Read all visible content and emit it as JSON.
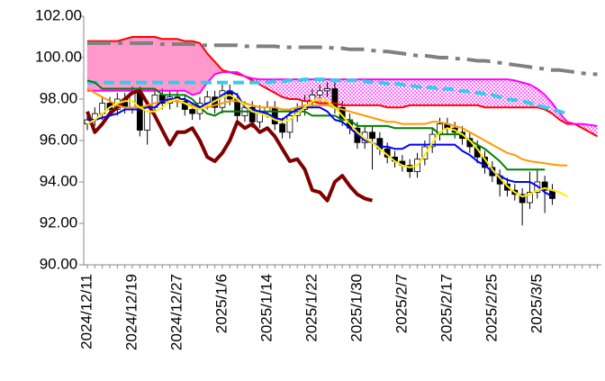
{
  "chart_data": {
    "type": "candlestick",
    "categories": [
      "2024/12/11",
      null,
      null,
      null,
      null,
      null,
      "2024/12/19",
      null,
      null,
      null,
      null,
      null,
      "2024/12/27",
      null,
      null,
      null,
      null,
      null,
      "2025/1/6",
      null,
      null,
      null,
      null,
      null,
      "2025/1/14",
      null,
      null,
      null,
      null,
      null,
      "2025/1/22",
      null,
      null,
      null,
      null,
      null,
      "2025/1/30",
      null,
      null,
      null,
      null,
      null,
      "2025/2/7",
      null,
      null,
      null,
      null,
      null,
      "2025/2/17",
      null,
      null,
      null,
      null,
      null,
      "2025/2/25",
      null,
      null,
      null,
      null,
      null,
      "2025/3/5",
      null,
      null,
      null,
      null,
      null,
      null,
      null,
      null
    ],
    "ylim": [
      90,
      102
    ],
    "yticks": [
      {
        "value": 90,
        "label": "90.00"
      },
      {
        "value": 92,
        "label": "92.00"
      },
      {
        "value": 94,
        "label": "94.00"
      },
      {
        "value": 96,
        "label": "96.00"
      },
      {
        "value": 98,
        "label": "98.00"
      },
      {
        "value": 100,
        "label": "100.00"
      },
      {
        "value": 102,
        "label": "102.00"
      }
    ],
    "grid": false,
    "cloud": {
      "upper_color": "#ff99cc",
      "lower_color": "#ff00ff",
      "spans": [
        0,
        1
      ]
    },
    "series": [
      {
        "color": "#ff0000",
        "line_style": "solid",
        "weight": "normal",
        "values": [
          100.8,
          100.8,
          100.8,
          100.8,
          100.8,
          100.9,
          101.0,
          101.0,
          101.0,
          101.0,
          100.9,
          100.9,
          100.9,
          100.8,
          100.8,
          100.7,
          100.2,
          99.8,
          99.4,
          99.3,
          99.2,
          99.1,
          98.9,
          98.7,
          98.5,
          98.3,
          98.1,
          98.0,
          98.0,
          97.9,
          97.9,
          97.8,
          97.8,
          97.8,
          97.7,
          97.7,
          97.7,
          97.7,
          97.7,
          97.7,
          97.6,
          97.6,
          97.6,
          97.7,
          97.7,
          97.7,
          97.7,
          97.7,
          97.7,
          97.7,
          97.7,
          97.7,
          97.7,
          97.6,
          97.6,
          97.6,
          97.6,
          97.6,
          97.6,
          97.6,
          97.6,
          97.5,
          97.3,
          97.0,
          96.8,
          96.8,
          96.6,
          96.4,
          96.2
        ]
      },
      {
        "color": "#ff00ff",
        "line_style": "solid",
        "weight": "normal",
        "values": [
          98.4,
          98.4,
          98.4,
          98.4,
          98.4,
          98.4,
          98.4,
          98.4,
          98.4,
          98.4,
          98.4,
          98.4,
          98.4,
          98.4,
          98.2,
          98.3,
          98.8,
          99.2,
          99.3,
          99.3,
          99.3,
          99.1,
          99.0,
          98.95,
          98.95,
          98.95,
          98.95,
          98.95,
          98.95,
          98.95,
          98.95,
          98.95,
          98.95,
          98.95,
          98.95,
          98.95,
          98.95,
          98.95,
          98.95,
          98.95,
          98.95,
          98.95,
          98.95,
          98.95,
          98.95,
          98.95,
          98.95,
          98.95,
          98.95,
          98.95,
          98.95,
          98.95,
          98.95,
          98.95,
          98.95,
          98.95,
          98.95,
          98.9,
          98.8,
          98.7,
          98.5,
          98.2,
          97.8,
          97.3,
          96.9,
          96.8,
          96.8,
          96.75,
          96.7
        ]
      },
      {
        "color": "#808080",
        "line_style": "dash-dot",
        "weight": "heavy",
        "values": [
          100.7,
          100.7,
          100.7,
          100.7,
          100.7,
          100.7,
          100.7,
          100.7,
          100.7,
          100.7,
          100.65,
          100.65,
          100.65,
          100.65,
          100.65,
          100.6,
          100.6,
          100.6,
          100.6,
          100.6,
          100.6,
          100.55,
          100.55,
          100.55,
          100.55,
          100.55,
          100.5,
          100.5,
          100.5,
          100.5,
          100.5,
          100.5,
          100.5,
          100.45,
          100.45,
          100.4,
          100.4,
          100.4,
          100.35,
          100.3,
          100.3,
          100.25,
          100.2,
          100.15,
          100.1,
          100.1,
          100.05,
          100.0,
          100.0,
          99.95,
          99.95,
          99.9,
          99.85,
          99.85,
          99.8,
          99.75,
          99.7,
          99.65,
          99.6,
          99.55,
          99.5,
          99.45,
          99.4,
          99.4,
          99.35,
          99.3,
          99.25,
          99.2,
          99.2
        ]
      },
      {
        "color": "#33ccee",
        "line_style": "dashed",
        "weight": "heavy",
        "values": [
          98.8,
          98.8,
          98.8,
          98.8,
          98.8,
          98.8,
          98.8,
          98.8,
          98.8,
          98.8,
          98.8,
          98.8,
          98.8,
          98.8,
          98.8,
          98.8,
          98.8,
          98.8,
          98.8,
          98.8,
          98.8,
          98.8,
          98.8,
          98.8,
          98.8,
          98.85,
          98.85,
          98.9,
          98.9,
          98.95,
          98.95,
          98.95,
          98.95,
          98.9,
          98.9,
          98.9,
          98.9,
          98.85,
          98.8,
          98.8,
          98.75,
          98.75,
          98.7,
          98.65,
          98.6,
          98.6,
          98.55,
          98.5,
          98.5,
          98.45,
          98.4,
          98.35,
          98.3,
          98.25,
          98.2,
          98.1,
          98.0,
          97.95,
          97.9,
          97.8,
          97.7,
          97.6,
          97.5,
          97.4,
          97.3,
          null,
          null,
          null,
          null
        ]
      },
      {
        "color": "#800000",
        "line_style": "solid",
        "weight": "heavy",
        "values": [
          97.4,
          96.4,
          96.8,
          97.3,
          97.6,
          98.0,
          98.3,
          98.4,
          97.8,
          97.2,
          96.5,
          95.8,
          96.4,
          96.4,
          96.6,
          96.0,
          95.2,
          95.0,
          95.4,
          96.0,
          96.9,
          96.6,
          96.8,
          96.4,
          96.6,
          96.2,
          95.6,
          95.0,
          95.1,
          94.6,
          93.6,
          93.5,
          93.1,
          94.0,
          94.3,
          93.8,
          93.4,
          93.2,
          93.1,
          null,
          null,
          null,
          null,
          null,
          null,
          null,
          null,
          null,
          null,
          null,
          null,
          null,
          null,
          null,
          null,
          null,
          null,
          null,
          null,
          null,
          null,
          null,
          null,
          null,
          null,
          null,
          null,
          null,
          null
        ]
      },
      {
        "color": "#ff9900",
        "line_style": "solid",
        "weight": "normal",
        "values": [
          98.5,
          98.3,
          98.1,
          97.9,
          97.7,
          97.6,
          97.6,
          97.6,
          97.7,
          97.8,
          97.9,
          97.9,
          97.9,
          97.8,
          97.7,
          97.6,
          97.6,
          97.7,
          97.8,
          97.9,
          97.9,
          97.8,
          97.7,
          97.6,
          97.6,
          97.6,
          97.5,
          97.5,
          97.6,
          97.7,
          97.7,
          97.7,
          97.7,
          97.6,
          97.5,
          97.4,
          97.3,
          97.2,
          97.1,
          97.0,
          96.9,
          96.9,
          96.8,
          96.8,
          96.8,
          96.8,
          96.9,
          96.9,
          96.8,
          96.7,
          96.6,
          96.4,
          96.2,
          96.0,
          95.8,
          95.6,
          95.4,
          95.3,
          95.1,
          95.0,
          94.95,
          94.9,
          94.85,
          94.8,
          94.8,
          null,
          null,
          null,
          null
        ]
      },
      {
        "color": "#008000",
        "line_style": "solid",
        "weight": "normal",
        "values": [
          98.9,
          98.8,
          98.5,
          98.5,
          98.5,
          98.5,
          98.5,
          98.5,
          98.5,
          98.5,
          98.2,
          98.2,
          98.2,
          98.2,
          98.0,
          97.6,
          97.3,
          97.2,
          97.4,
          97.4,
          97.4,
          97.4,
          97.4,
          97.4,
          97.4,
          97.4,
          97.4,
          97.4,
          97.4,
          97.4,
          97.2,
          97.2,
          97.2,
          97.2,
          97.0,
          97.0,
          96.7,
          96.7,
          96.7,
          96.7,
          96.7,
          96.6,
          96.6,
          96.6,
          96.6,
          96.6,
          96.6,
          96.3,
          96.3,
          96.3,
          96.3,
          96.0,
          95.8,
          95.6,
          95.3,
          95.0,
          94.6,
          94.6,
          94.6,
          94.6,
          94.6,
          94.6,
          null,
          null,
          null,
          null,
          null,
          null,
          null
        ]
      },
      {
        "color": "#0000ff",
        "line_style": "solid",
        "weight": "normal",
        "values": [
          97.0,
          97.0,
          97.1,
          97.2,
          97.3,
          97.5,
          97.5,
          97.5,
          97.6,
          97.6,
          97.9,
          98.0,
          98.0,
          98.0,
          97.8,
          97.6,
          97.8,
          97.9,
          98.2,
          98.4,
          98.2,
          97.6,
          97.5,
          97.4,
          97.3,
          97.1,
          97.0,
          97.3,
          97.5,
          97.6,
          97.6,
          97.6,
          97.4,
          97.0,
          96.9,
          96.6,
          96.3,
          96.0,
          95.9,
          95.7,
          95.7,
          95.6,
          95.6,
          95.8,
          95.8,
          95.8,
          95.8,
          95.8,
          95.8,
          95.8,
          95.5,
          95.3,
          95.0,
          94.8,
          94.5,
          94.3,
          94.1,
          94.0,
          94.0,
          94.0,
          93.8,
          93.5,
          93.3,
          null,
          null,
          null,
          null,
          null,
          null
        ]
      },
      {
        "color": "#ffee00",
        "line_style": "solid",
        "weight": "normal",
        "values": [
          96.8,
          97.0,
          97.3,
          97.6,
          97.8,
          97.9,
          97.9,
          97.6,
          97.4,
          97.4,
          97.6,
          97.9,
          98.0,
          97.8,
          97.6,
          97.5,
          97.7,
          97.9,
          98.1,
          98.2,
          98.0,
          97.7,
          97.4,
          97.3,
          97.2,
          97.0,
          96.9,
          97.0,
          97.3,
          97.6,
          97.9,
          98.0,
          97.9,
          97.6,
          97.2,
          96.8,
          96.4,
          96.1,
          95.9,
          95.6,
          95.3,
          95.0,
          94.8,
          94.7,
          94.8,
          95.3,
          95.9,
          96.4,
          96.6,
          96.5,
          96.3,
          96.0,
          95.6,
          95.1,
          94.6,
          94.2,
          93.8,
          93.5,
          93.3,
          93.4,
          93.6,
          93.7,
          93.6,
          93.5,
          93.3,
          null,
          null,
          null,
          null
        ]
      }
    ],
    "candles": {
      "rise_color": "#ffffff",
      "fall_color": "#000000",
      "open": [
        96.8,
        97.0,
        97.3,
        97.8,
        97.5,
        98.0,
        97.6,
        98.3,
        96.5,
        97.6,
        98.2,
        97.8,
        98.1,
        97.9,
        97.5,
        97.3,
        97.8,
        98.1,
        97.6,
        98.4,
        98.0,
        97.2,
        97.6,
        96.9,
        97.4,
        97.6,
        96.8,
        96.4,
        97.2,
        97.5,
        97.9,
        98.2,
        98.4,
        98.5,
        97.6,
        97.0,
        96.6,
        95.9,
        96.4,
        96.1,
        95.6,
        95.2,
        95.0,
        94.8,
        94.5,
        95.1,
        95.7,
        96.3,
        96.8,
        96.6,
        96.4,
        96.1,
        95.7,
        95.2,
        94.7,
        94.3,
        93.9,
        93.6,
        93.4,
        93.0,
        93.5,
        94.0,
        93.6,
        null,
        null,
        null,
        null,
        null,
        null
      ],
      "high": [
        97.3,
        97.6,
        98.1,
        98.1,
        98.3,
        98.3,
        98.6,
        98.6,
        97.9,
        98.5,
        98.5,
        98.4,
        98.4,
        98.2,
        97.8,
        98.1,
        98.4,
        98.4,
        98.7,
        98.7,
        98.3,
        97.9,
        97.9,
        97.7,
        97.9,
        97.9,
        97.1,
        97.5,
        97.8,
        98.2,
        98.5,
        98.7,
        98.8,
        98.8,
        97.9,
        97.3,
        96.9,
        96.7,
        96.7,
        96.4,
        95.9,
        95.5,
        95.3,
        95.1,
        95.4,
        96.0,
        96.6,
        97.1,
        97.1,
        96.9,
        96.7,
        96.4,
        96.0,
        95.5,
        95.0,
        94.6,
        94.2,
        93.9,
        93.7,
        94.5,
        94.6,
        94.3,
        93.9,
        null,
        null,
        null,
        null,
        null,
        null
      ],
      "low": [
        96.5,
        96.7,
        97.0,
        97.2,
        97.2,
        97.3,
        97.3,
        96.2,
        95.8,
        97.3,
        97.5,
        97.5,
        97.6,
        97.2,
        97.0,
        97.0,
        97.5,
        97.3,
        97.3,
        97.7,
        96.9,
        96.9,
        96.6,
        96.6,
        97.1,
        96.5,
        96.1,
        96.1,
        96.9,
        97.2,
        97.6,
        97.9,
        98.1,
        97.3,
        96.7,
        96.3,
        95.6,
        95.6,
        94.6,
        95.3,
        94.9,
        94.7,
        94.5,
        94.2,
        94.2,
        94.8,
        95.4,
        96.0,
        96.3,
        96.1,
        95.8,
        95.4,
        94.9,
        94.4,
        94.0,
        93.3,
        93.3,
        93.1,
        91.9,
        92.7,
        93.2,
        92.5,
        92.9,
        null,
        null,
        null,
        null,
        null,
        null
      ],
      "close": [
        97.0,
        97.3,
        97.8,
        97.5,
        98.0,
        97.6,
        98.3,
        96.5,
        97.6,
        98.2,
        97.8,
        98.1,
        97.9,
        97.5,
        97.3,
        97.8,
        98.1,
        97.6,
        98.4,
        98.0,
        97.2,
        97.6,
        96.9,
        97.4,
        97.6,
        96.8,
        96.4,
        97.2,
        97.5,
        97.9,
        98.2,
        98.4,
        98.5,
        97.6,
        97.0,
        96.6,
        95.9,
        96.4,
        96.1,
        95.6,
        95.2,
        95.0,
        94.8,
        94.5,
        95.1,
        95.7,
        96.3,
        96.8,
        96.6,
        96.4,
        96.1,
        95.7,
        95.2,
        94.7,
        94.3,
        93.9,
        93.6,
        93.4,
        93.0,
        93.5,
        94.0,
        93.6,
        93.2,
        null,
        null,
        null,
        null,
        null,
        null
      ]
    }
  }
}
